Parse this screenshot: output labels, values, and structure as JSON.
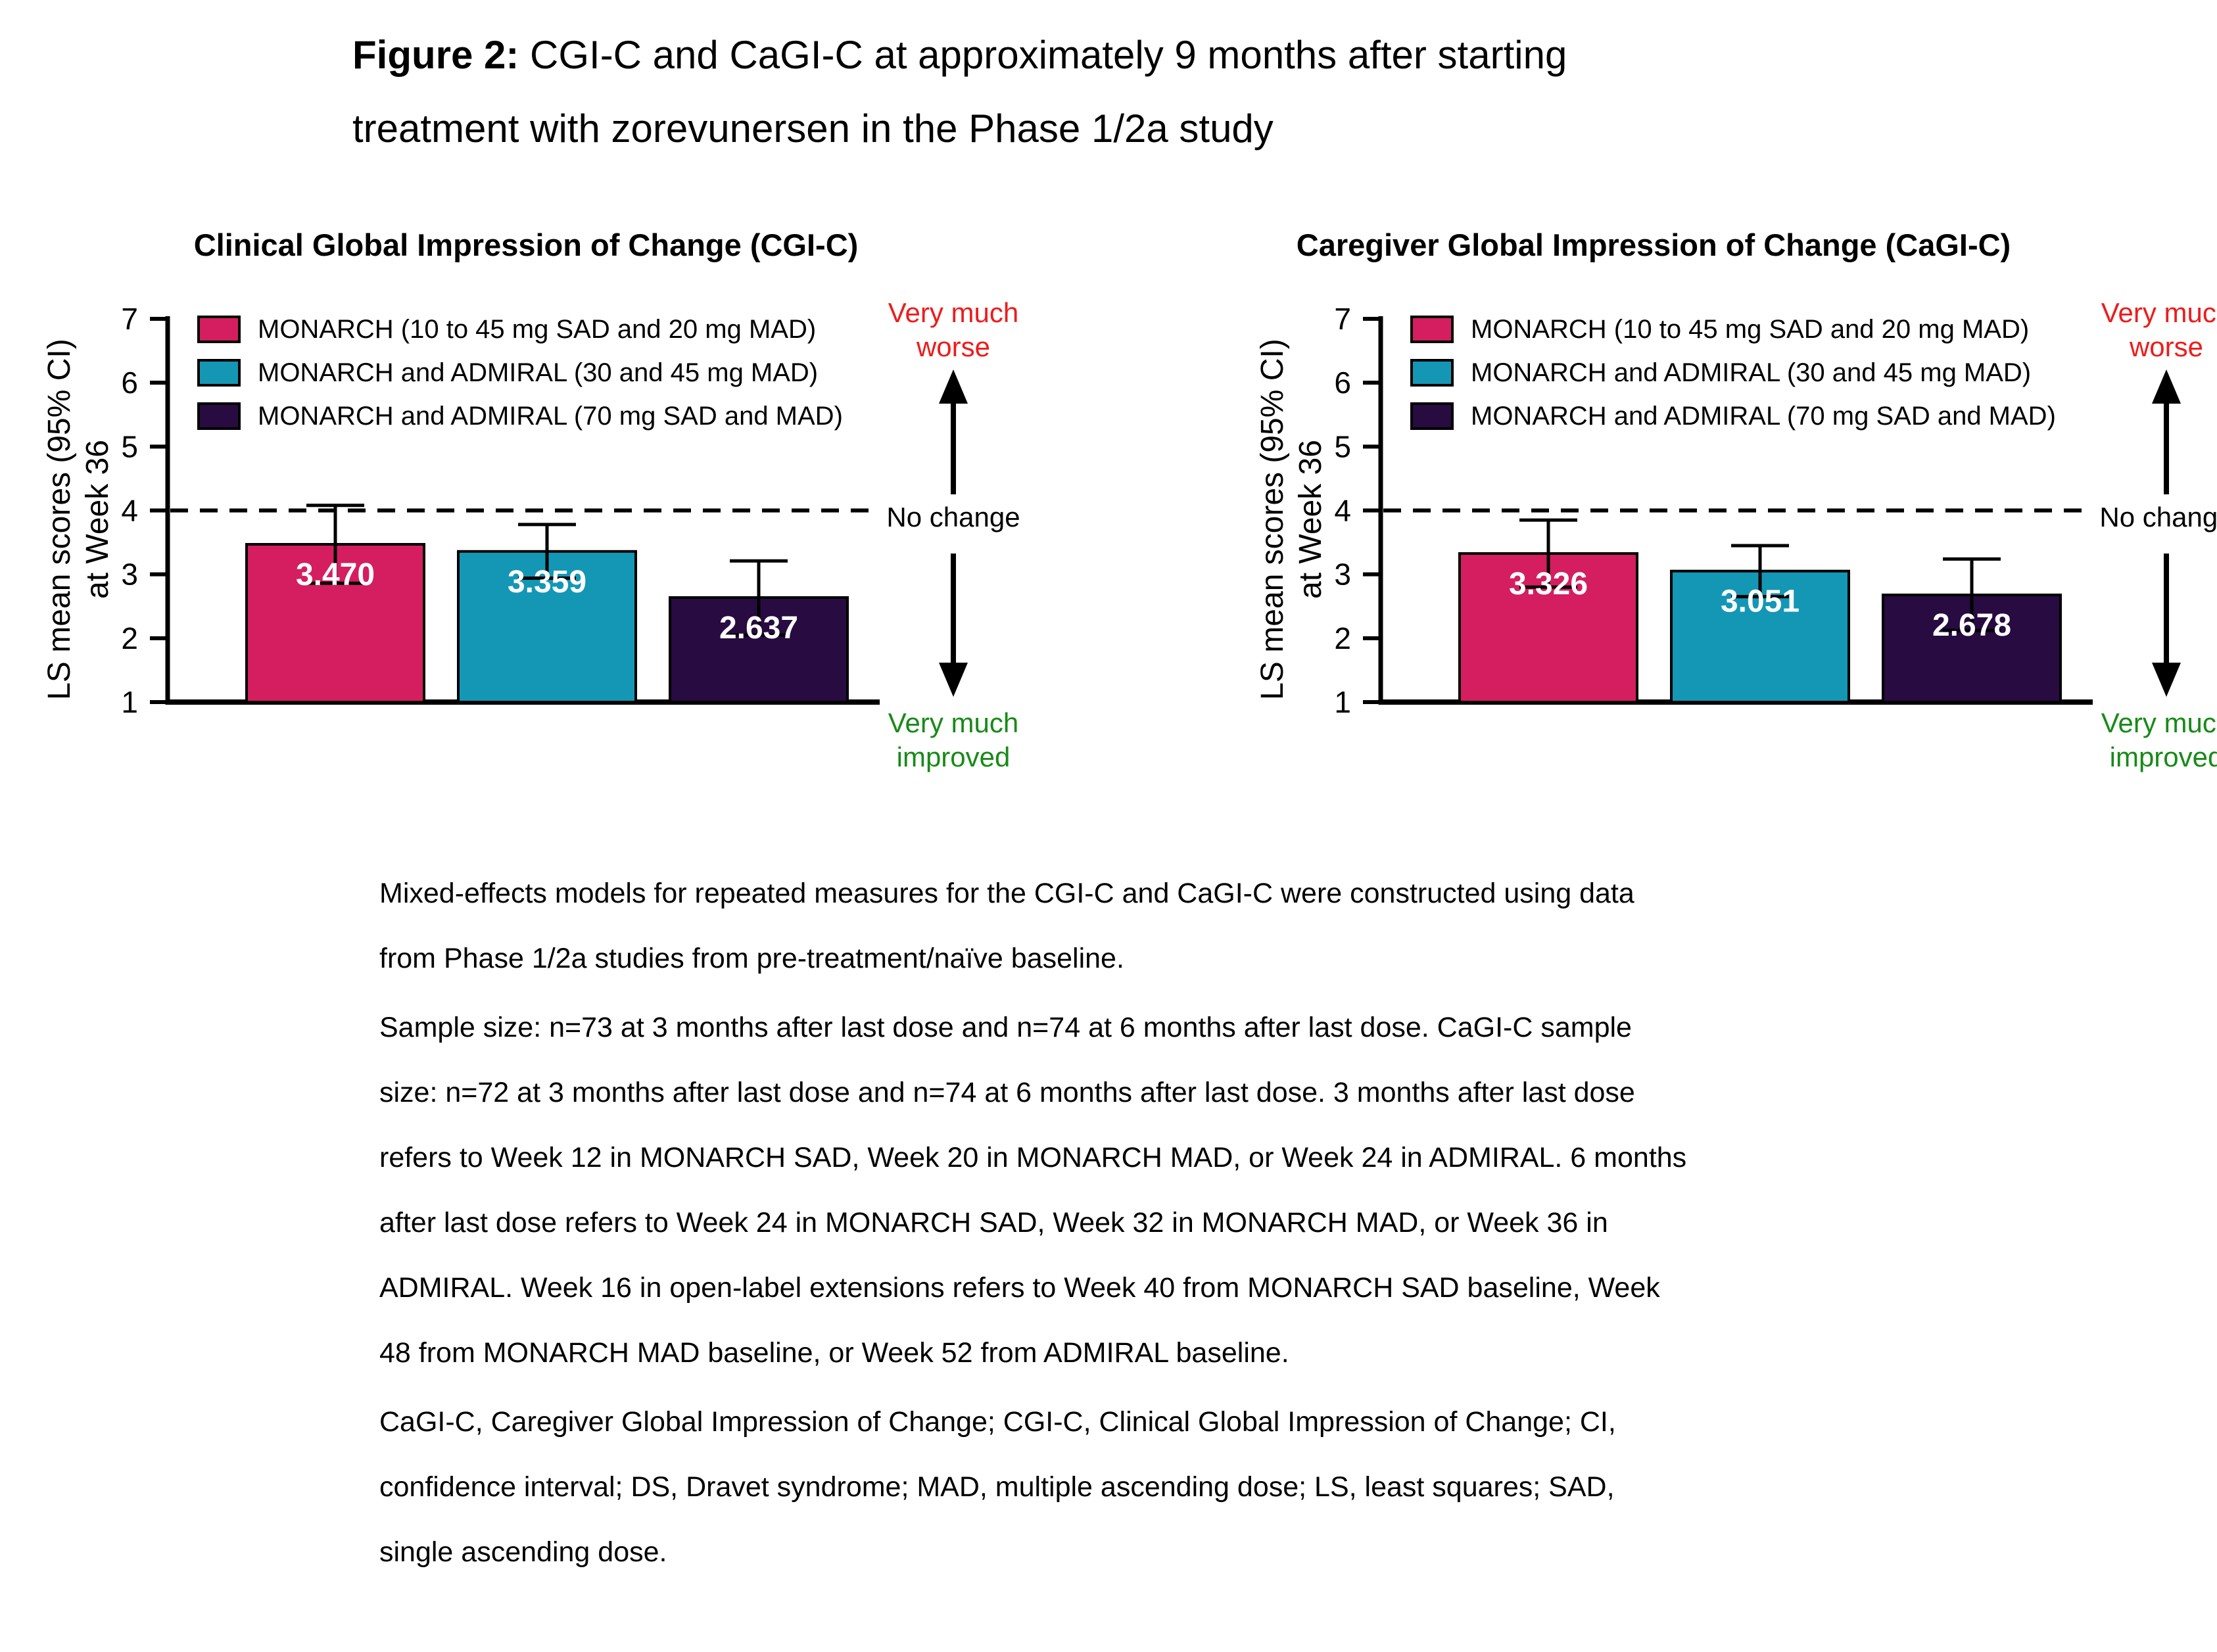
{
  "figure": {
    "title_prefix": "Figure 2:",
    "title_line1_rest": " CGI-C and CaGI-C at approximately 9 months after starting",
    "title_line2": "treatment with zorevunersen in the Phase 1/2a study"
  },
  "legend": {
    "items": [
      {
        "label": "MONARCH (10 to 45 mg SAD and 20 mg MAD)",
        "color": "#D41E5F"
      },
      {
        "label": "MONARCH and ADMIRAL (30 and 45 mg MAD)",
        "color": "#1497B5"
      },
      {
        "label": "MONARCH and ADMIRAL (70 mg SAD and MAD)",
        "color": "#270B41"
      }
    ]
  },
  "axis": {
    "ylabel_line1": "LS mean scores (95% CI)",
    "ylabel_line2": "at Week 36"
  },
  "annotations": {
    "worse_line1": "Very much",
    "worse_line2": "worse",
    "no_change": "No change",
    "improved_line1": "Very much",
    "improved_line2": "improved",
    "worse_color": "#ED1C1C",
    "improved_color": "#188A18"
  },
  "chart_data": [
    {
      "type": "bar",
      "title": "Clinical Global Impression of Change (CGI-C)",
      "ylabel": "LS mean scores (95% CI) at Week 36",
      "ylim": [
        1,
        7
      ],
      "yticks": [
        1,
        2,
        3,
        4,
        5,
        6,
        7
      ],
      "grid": false,
      "legend_position": "upper-left",
      "reference_line": {
        "y": 4,
        "label": "No change",
        "style": "dashed"
      },
      "categories": [
        "MONARCH (10 to 45 mg SAD and 20 mg MAD)",
        "MONARCH and ADMIRAL (30 and 45 mg MAD)",
        "MONARCH and ADMIRAL (70 mg SAD and MAD)"
      ],
      "values": [
        3.47,
        3.359,
        2.637
      ],
      "value_labels": [
        "3.470",
        "3.359",
        "2.637"
      ],
      "ci_low": [
        2.86,
        2.94,
        2.05
      ],
      "ci_high": [
        4.08,
        3.78,
        3.21
      ],
      "colors": [
        "#D41E5F",
        "#1497B5",
        "#270B41"
      ]
    },
    {
      "type": "bar",
      "title": "Caregiver Global Impression of Change (CaGI-C)",
      "ylabel": "LS mean scores (95% CI) at Week 36",
      "ylim": [
        1,
        7
      ],
      "yticks": [
        1,
        2,
        3,
        4,
        5,
        6,
        7
      ],
      "grid": false,
      "legend_position": "upper-left",
      "reference_line": {
        "y": 4,
        "label": "No change",
        "style": "dashed"
      },
      "categories": [
        "MONARCH (10 to 45 mg SAD and 20 mg MAD)",
        "MONARCH and ADMIRAL (30 and 45 mg MAD)",
        "MONARCH and ADMIRAL (70 mg SAD and MAD)"
      ],
      "values": [
        3.326,
        3.051,
        2.678
      ],
      "value_labels": [
        "3.326",
        "3.051",
        "2.678"
      ],
      "ci_low": [
        2.8,
        2.65,
        2.12
      ],
      "ci_high": [
        3.85,
        3.45,
        3.24
      ],
      "colors": [
        "#D41E5F",
        "#1497B5",
        "#270B41"
      ]
    }
  ],
  "footnotes": {
    "paragraphs": [
      "Mixed-effects models for repeated measures for the CGI-C and CaGI-C were constructed using data from Phase 1/2a studies from pre-treatment/naïve baseline.",
      "Sample size: n=73 at 3 months after last dose and n=74 at 6 months after last dose. CaGI-C sample size: n=72 at 3 months after last dose and n=74 at 6 months after last dose. 3 months after last dose refers to Week 12 in MONARCH SAD, Week 20 in MONARCH MAD, or Week 24 in ADMIRAL. 6 months after last dose refers to Week 24 in MONARCH SAD, Week 32 in MONARCH MAD, or Week 36 in ADMIRAL. Week 16 in open-label extensions refers to Week 40 from MONARCH SAD baseline, Week 48 from MONARCH MAD baseline, or Week 52 from ADMIRAL baseline.",
      "CaGI-C, Caregiver Global Impression of Change; CGI-C, Clinical Global Impression of Change; CI, confidence interval; DS, Dravet syndrome; MAD, multiple ascending dose; LS, least squares; SAD, single ascending dose."
    ]
  }
}
